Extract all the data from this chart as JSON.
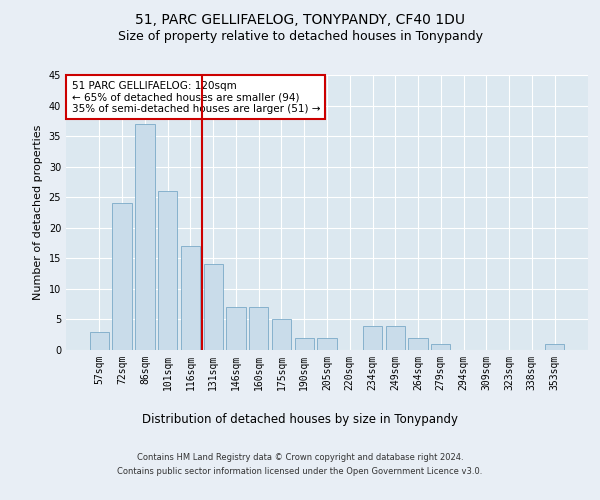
{
  "title": "51, PARC GELLIFAELOG, TONYPANDY, CF40 1DU",
  "subtitle": "Size of property relative to detached houses in Tonypandy",
  "xlabel": "Distribution of detached houses by size in Tonypandy",
  "ylabel": "Number of detached properties",
  "categories": [
    "57sqm",
    "72sqm",
    "86sqm",
    "101sqm",
    "116sqm",
    "131sqm",
    "146sqm",
    "160sqm",
    "175sqm",
    "190sqm",
    "205sqm",
    "220sqm",
    "234sqm",
    "249sqm",
    "264sqm",
    "279sqm",
    "294sqm",
    "309sqm",
    "323sqm",
    "338sqm",
    "353sqm"
  ],
  "values": [
    3,
    24,
    37,
    26,
    17,
    14,
    7,
    7,
    5,
    2,
    2,
    0,
    4,
    4,
    2,
    1,
    0,
    0,
    0,
    0,
    1
  ],
  "bar_color": "#c9dcea",
  "bar_edge_color": "#7aaac8",
  "ylim": [
    0,
    45
  ],
  "yticks": [
    0,
    5,
    10,
    15,
    20,
    25,
    30,
    35,
    40,
    45
  ],
  "vline_x": 4.5,
  "vline_color": "#cc0000",
  "annotation_text": "51 PARC GELLIFAELOG: 120sqm\n← 65% of detached houses are smaller (94)\n35% of semi-detached houses are larger (51) →",
  "annotation_box_facecolor": "#ffffff",
  "annotation_box_edgecolor": "#cc0000",
  "footer_line1": "Contains HM Land Registry data © Crown copyright and database right 2024.",
  "footer_line2": "Contains public sector information licensed under the Open Government Licence v3.0.",
  "background_color": "#e8eef5",
  "plot_bg_color": "#dce8f0",
  "grid_color": "#ffffff",
  "title_fontsize": 10,
  "subtitle_fontsize": 9,
  "tick_fontsize": 7,
  "ylabel_fontsize": 8,
  "xlabel_fontsize": 8.5,
  "annotation_fontsize": 7.5,
  "footer_fontsize": 6
}
